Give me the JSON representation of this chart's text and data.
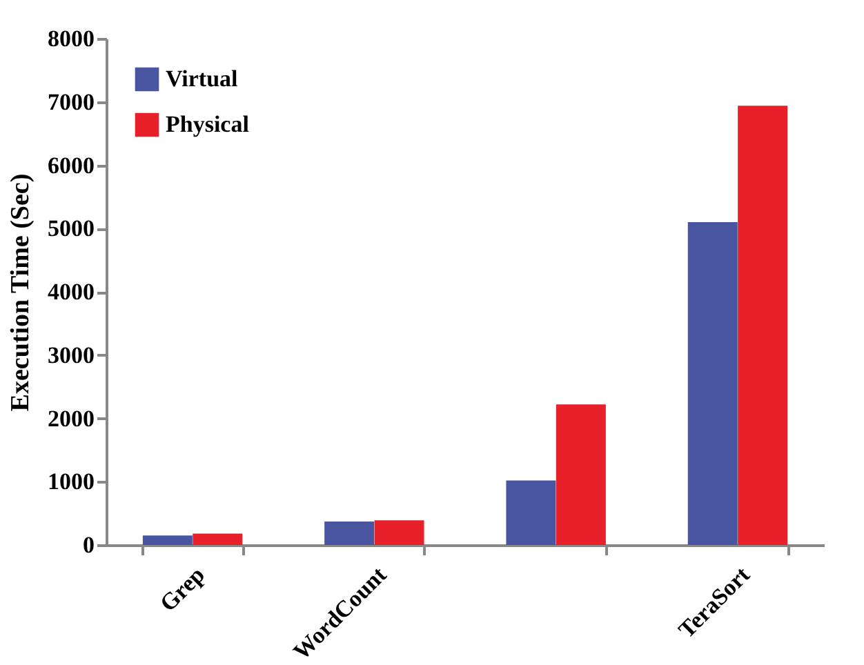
{
  "chart_data": {
    "type": "bar",
    "ylabel": "Execution Time (Sec)",
    "categories": [
      "Grep",
      "WordCount",
      null,
      "TeraSort"
    ],
    "series": [
      {
        "name": "Virtual",
        "color": "#4a55a2",
        "values": [
          150,
          370,
          1020,
          5100
        ]
      },
      {
        "name": "Physical",
        "color": "#e8202a",
        "values": [
          180,
          390,
          2220,
          6940
        ]
      }
    ],
    "ylim": [
      0,
      8000
    ],
    "yticks": [
      0,
      1000,
      2000,
      3000,
      4000,
      5000,
      6000,
      7000,
      8000
    ],
    "legend": "top left"
  }
}
